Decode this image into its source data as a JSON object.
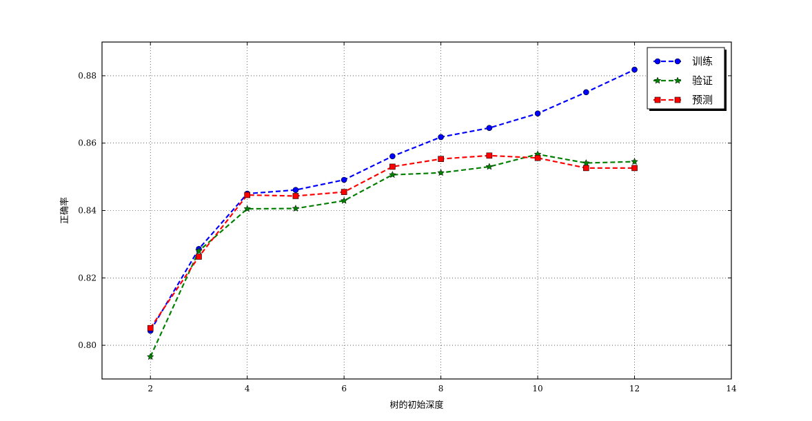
{
  "chart_data": {
    "type": "line",
    "title": "",
    "xlabel": "树的初始深度",
    "ylabel": "正确率",
    "xlim": [
      1,
      14
    ],
    "ylim": [
      0.79,
      0.89
    ],
    "xticks": [
      2,
      4,
      6,
      8,
      10,
      12,
      14
    ],
    "yticks": [
      0.8,
      0.82,
      0.84,
      0.86,
      0.88
    ],
    "ytick_labels": [
      "0.80",
      "0.82",
      "0.84",
      "0.86",
      "0.88"
    ],
    "grid": true,
    "legend_position": "top-right",
    "x": [
      2,
      3,
      4,
      5,
      6,
      7,
      8,
      9,
      10,
      11,
      12
    ],
    "series": [
      {
        "name": "训练",
        "color": "#0000ff",
        "marker": "circle",
        "values": [
          0.8043,
          0.8286,
          0.845,
          0.8461,
          0.8491,
          0.8561,
          0.8618,
          0.8645,
          0.8688,
          0.8751,
          0.8818
        ]
      },
      {
        "name": "验证",
        "color": "#007f00",
        "marker": "star",
        "values": [
          0.7966,
          0.828,
          0.8405,
          0.8406,
          0.8429,
          0.8506,
          0.8512,
          0.853,
          0.8567,
          0.8541,
          0.8545
        ]
      },
      {
        "name": "预测",
        "color": "#ff0000",
        "marker": "square",
        "values": [
          0.8051,
          0.8263,
          0.8446,
          0.8443,
          0.8455,
          0.853,
          0.8553,
          0.8563,
          0.8556,
          0.8526,
          0.8526
        ]
      }
    ]
  }
}
